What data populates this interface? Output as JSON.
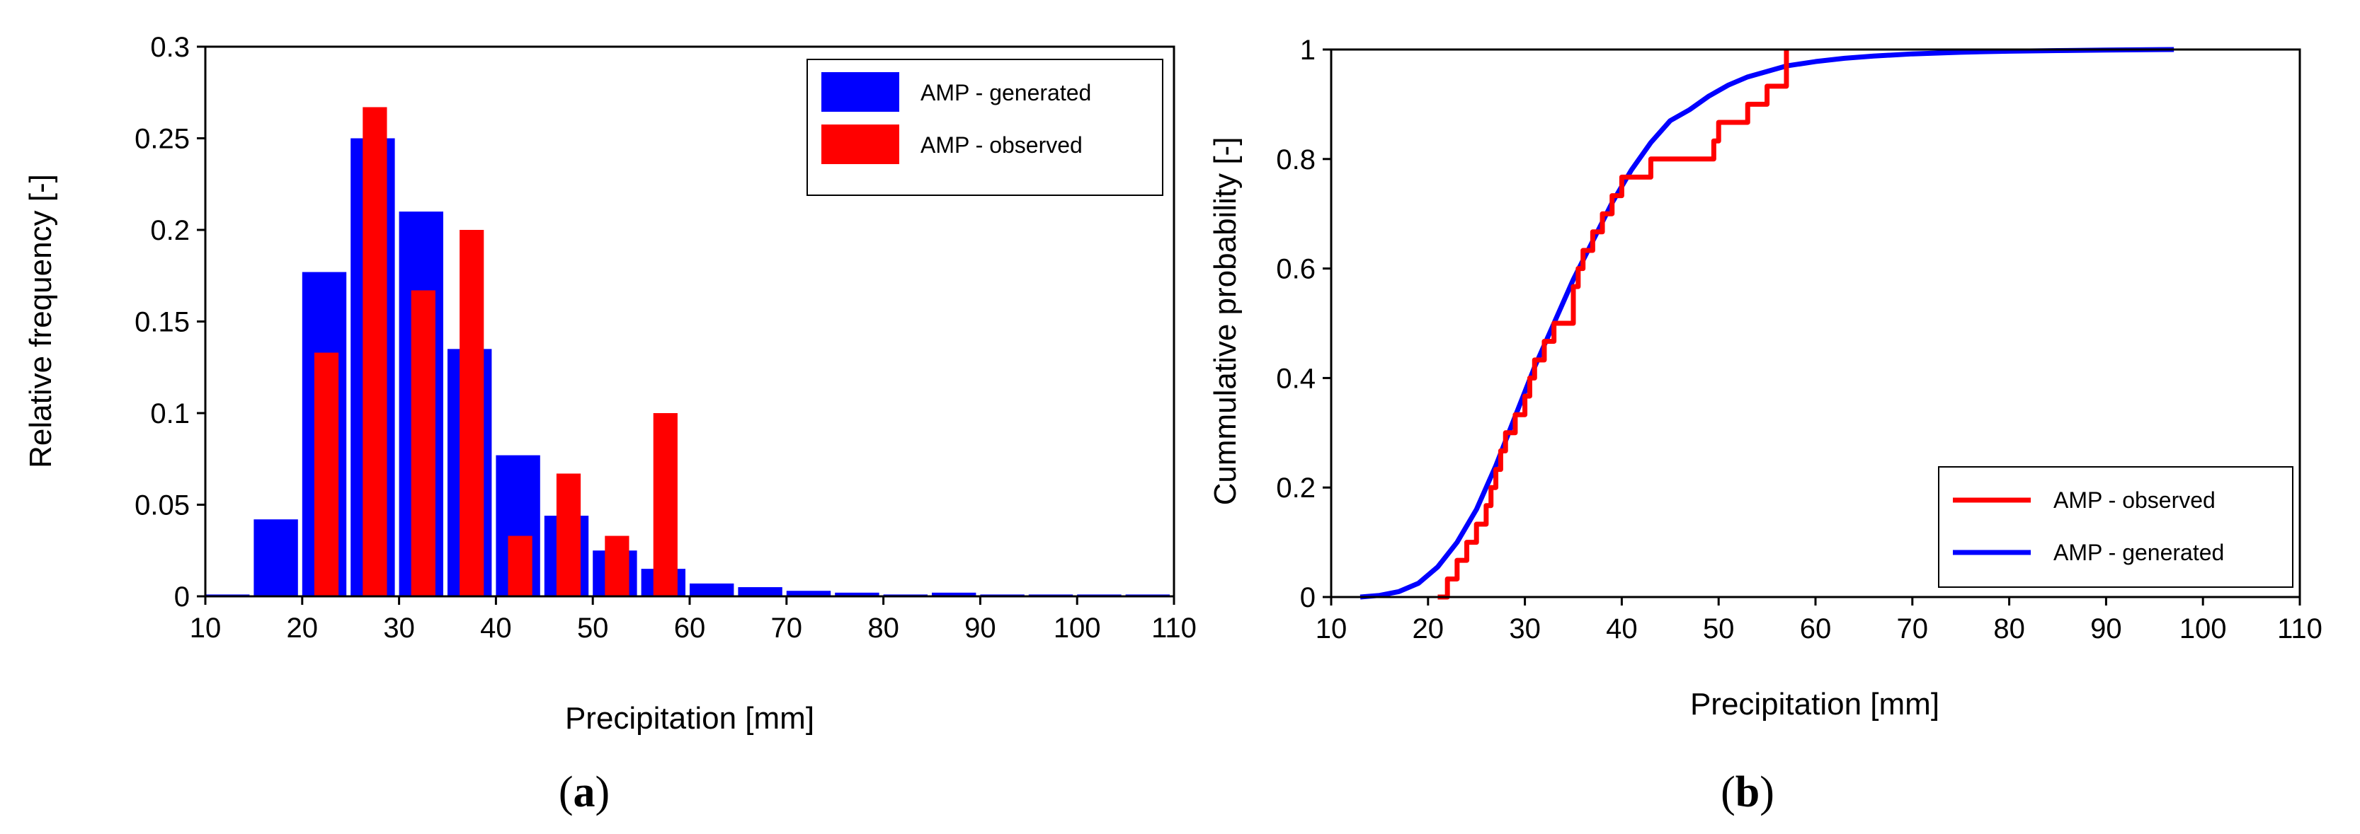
{
  "colors": {
    "generated": "#0000ff",
    "observed": "#ff0000",
    "axis": "#000000"
  },
  "chart_data": [
    {
      "id": "a",
      "type": "bar",
      "caption": {
        "open": "(",
        "letter": "a",
        "close": ")"
      },
      "xlabel": "Precipitation [mm]",
      "ylabel": "Relative frequency [-]",
      "xlim": [
        10,
        110
      ],
      "ylim": [
        0,
        0.3
      ],
      "xticks": [
        "10",
        "20",
        "30",
        "40",
        "50",
        "60",
        "70",
        "80",
        "90",
        "100",
        "110"
      ],
      "yticks": [
        "0",
        "0.05",
        "0.1",
        "0.15",
        "0.2",
        "0.25",
        "0.3"
      ],
      "grid": false,
      "legend_position": "top-right",
      "series": [
        {
          "name": "AMP - generated",
          "color_key": "generated",
          "bin_width": 5,
          "x": [
            12.5,
            17.5,
            22.5,
            27.5,
            32.5,
            37.5,
            42.5,
            47.5,
            52.5,
            57.5,
            62.5,
            67.5,
            72.5,
            77.5,
            82.5,
            87.5,
            92.5,
            97.5,
            102.5,
            107.5
          ],
          "values": [
            0.001,
            0.042,
            0.177,
            0.25,
            0.21,
            0.135,
            0.077,
            0.044,
            0.025,
            0.015,
            0.007,
            0.005,
            0.003,
            0.002,
            0.001,
            0.002,
            0.001,
            0.001,
            0.001,
            0.001
          ]
        },
        {
          "name": "AMP - observed",
          "color_key": "observed",
          "bin_width": 2.5,
          "x": [
            22.5,
            27.5,
            32.5,
            37.5,
            42.5,
            47.5,
            52.5,
            57.5
          ],
          "values": [
            0.133,
            0.267,
            0.167,
            0.2,
            0.033,
            0.067,
            0.033,
            0.1
          ]
        }
      ]
    },
    {
      "id": "b",
      "type": "line",
      "caption": {
        "open": "(",
        "letter": "b",
        "close": ")"
      },
      "xlabel": "Precipitation [mm]",
      "ylabel": "Cummulative probability [-]",
      "xlim": [
        10,
        110
      ],
      "ylim": [
        0,
        1
      ],
      "xticks": [
        "10",
        "20",
        "30",
        "40",
        "50",
        "60",
        "70",
        "80",
        "90",
        "100",
        "110"
      ],
      "yticks": [
        "0",
        "0.2",
        "0.4",
        "0.6",
        "0.8",
        "1"
      ],
      "grid": false,
      "legend_position": "bottom-right",
      "series": [
        {
          "name": "AMP - observed",
          "color_key": "observed",
          "step": true,
          "x": [
            21,
            22,
            23,
            24,
            25,
            26,
            26.5,
            27,
            27.5,
            28,
            29,
            30,
            30.5,
            31,
            32,
            33,
            35,
            35.5,
            36,
            37,
            38,
            39,
            40,
            43,
            49.5,
            50,
            53,
            55,
            57,
            57
          ],
          "y": [
            0,
            0.033,
            0.067,
            0.1,
            0.133,
            0.167,
            0.2,
            0.233,
            0.267,
            0.3,
            0.333,
            0.367,
            0.4,
            0.433,
            0.467,
            0.5,
            0.567,
            0.6,
            0.633,
            0.667,
            0.7,
            0.733,
            0.767,
            0.8,
            0.833,
            0.867,
            0.9,
            0.933,
            0.967,
            1.0
          ]
        },
        {
          "name": "AMP - generated",
          "color_key": "generated",
          "step": false,
          "x": [
            13,
            15,
            17,
            19,
            21,
            23,
            25,
            27,
            29,
            31,
            33,
            35,
            37,
            39,
            41,
            43,
            45,
            47,
            49,
            51,
            53,
            55,
            57,
            60,
            63,
            66,
            70,
            75,
            80,
            85,
            90,
            97
          ],
          "y": [
            0,
            0.003,
            0.01,
            0.025,
            0.055,
            0.1,
            0.16,
            0.24,
            0.33,
            0.42,
            0.5,
            0.58,
            0.65,
            0.72,
            0.78,
            0.83,
            0.87,
            0.89,
            0.915,
            0.935,
            0.95,
            0.96,
            0.97,
            0.978,
            0.984,
            0.988,
            0.992,
            0.995,
            0.997,
            0.998,
            0.999,
            1.0
          ]
        }
      ]
    }
  ]
}
